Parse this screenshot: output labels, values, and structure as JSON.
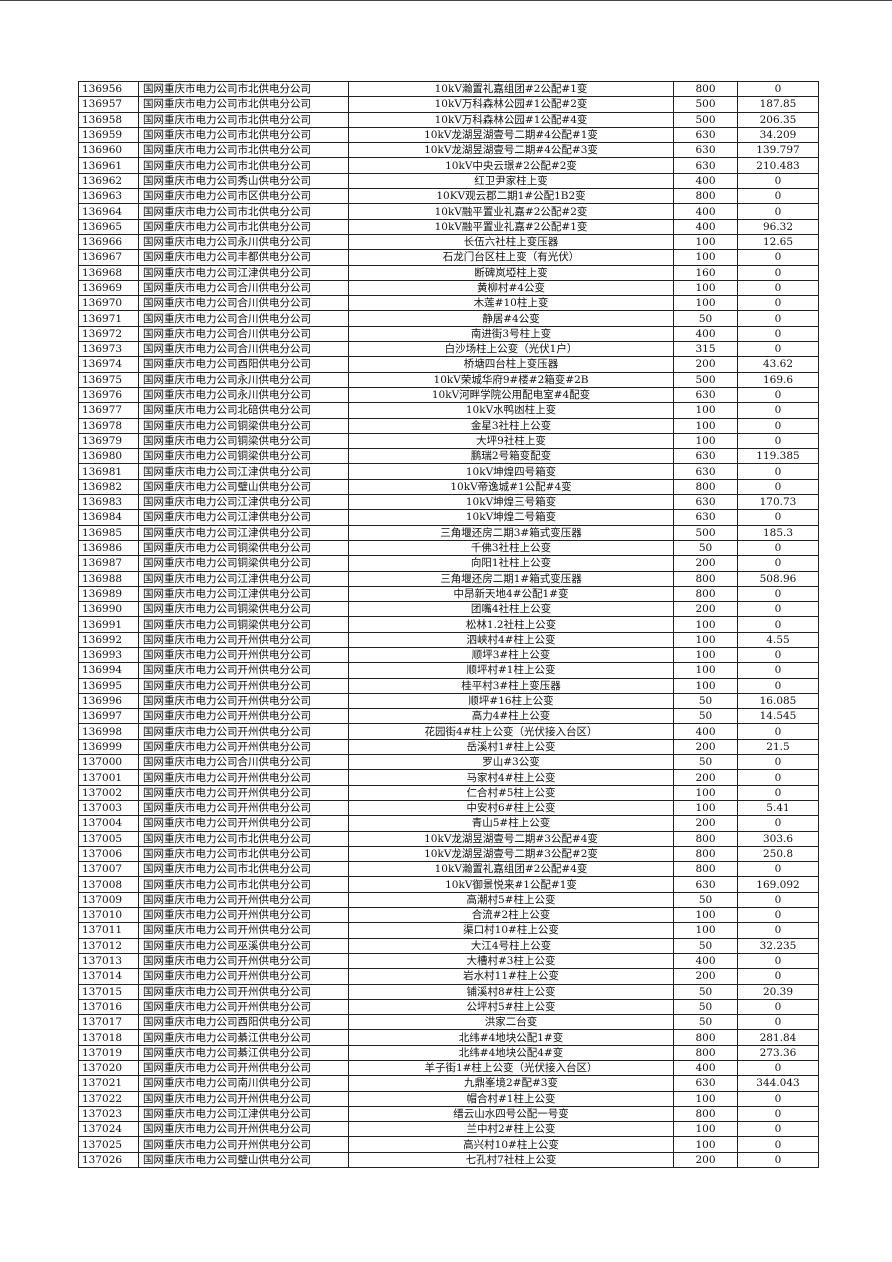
{
  "table": {
    "rows": [
      [
        "136956",
        "国网重庆市电力公司市北供电分公司",
        "10kV瀚置礼嘉组团#2公配#1变",
        "800",
        "0"
      ],
      [
        "136957",
        "国网重庆市电力公司市北供电分公司",
        "10kV万科森林公园#1公配#2变",
        "500",
        "187.85"
      ],
      [
        "136958",
        "国网重庆市电力公司市北供电分公司",
        "10kV万科森林公园#1公配#4变",
        "500",
        "206.35"
      ],
      [
        "136959",
        "国网重庆市电力公司市北供电分公司",
        "10kV龙湖昱湖壹号二期#4公配#1变",
        "630",
        "34.209"
      ],
      [
        "136960",
        "国网重庆市电力公司市北供电分公司",
        "10kV龙湖昱湖壹号二期#4公配#3变",
        "630",
        "139.797"
      ],
      [
        "136961",
        "国网重庆市电力公司市北供电分公司",
        "10kV中央云璟#2公配#2变",
        "630",
        "210.483"
      ],
      [
        "136962",
        "国网重庆市电力公司秀山供电分公司",
        "红卫尹家柱上变",
        "400",
        "0"
      ],
      [
        "136963",
        "国网重庆市电力公司市区供电分公司",
        "10KV观云郡二期1#公配1B2变",
        "800",
        "0"
      ],
      [
        "136964",
        "国网重庆市电力公司市北供电分公司",
        "10kV融平置业礼嘉#2公配#2变",
        "400",
        "0"
      ],
      [
        "136965",
        "国网重庆市电力公司市北供电分公司",
        "10kV融平置业礼嘉#2公配#1变",
        "400",
        "96.32"
      ],
      [
        "136966",
        "国网重庆市电力公司永川供电分公司",
        "长伍六社柱上变压器",
        "100",
        "12.65"
      ],
      [
        "136967",
        "国网重庆市电力公司丰都供电分公司",
        "石龙门台区柱上变（有光伏）",
        "100",
        "0"
      ],
      [
        "136968",
        "国网重庆市电力公司江津供电分公司",
        "断碑岚埡柱上变",
        "160",
        "0"
      ],
      [
        "136969",
        "国网重庆市电力公司合川供电分公司",
        "黄柳村#4公变",
        "100",
        "0"
      ],
      [
        "136970",
        "国网重庆市电力公司合川供电分公司",
        "木莲#10柱上变",
        "100",
        "0"
      ],
      [
        "136971",
        "国网重庆市电力公司合川供电分公司",
        "静居#4公变",
        "50",
        "0"
      ],
      [
        "136972",
        "国网重庆市电力公司合川供电分公司",
        "南进街3号柱上变",
        "400",
        "0"
      ],
      [
        "136973",
        "国网重庆市电力公司合川供电分公司",
        "白沙场柱上公变（光伏1户）",
        "315",
        "0"
      ],
      [
        "136974",
        "国网重庆市电力公司酉阳供电分公司",
        "桥塘四台柱上变压器",
        "200",
        "43.62"
      ],
      [
        "136975",
        "国网重庆市电力公司永川供电分公司",
        "10kV荣城华府9#楼#2箱变#2B",
        "500",
        "169.6"
      ],
      [
        "136976",
        "国网重庆市电力公司永川供电分公司",
        "10kV河畔学院公用配电室#4配变",
        "630",
        "0"
      ],
      [
        "136977",
        "国网重庆市电力公司北碚供电分公司",
        "10kV水鸭凼柱上变",
        "100",
        "0"
      ],
      [
        "136978",
        "国网重庆市电力公司铜梁供电分公司",
        "金星3社柱上公变",
        "100",
        "0"
      ],
      [
        "136979",
        "国网重庆市电力公司铜梁供电分公司",
        "大坪9社柱上变",
        "100",
        "0"
      ],
      [
        "136980",
        "国网重庆市电力公司铜梁供电分公司",
        "鹏瑞2号箱变配变",
        "630",
        "119.385"
      ],
      [
        "136981",
        "国网重庆市电力公司江津供电分公司",
        "10kV坤煌四号箱变",
        "630",
        "0"
      ],
      [
        "136982",
        "国网重庆市电力公司璧山供电分公司",
        "10kV帝逸城#1公配#4变",
        "800",
        "0"
      ],
      [
        "136983",
        "国网重庆市电力公司江津供电分公司",
        "10kV坤煌三号箱变",
        "630",
        "170.73"
      ],
      [
        "136984",
        "国网重庆市电力公司江津供电分公司",
        "10kV坤煌二号箱变",
        "630",
        "0"
      ],
      [
        "136985",
        "国网重庆市电力公司江津供电分公司",
        "三角堰还房二期3#箱式变压器",
        "500",
        "185.3"
      ],
      [
        "136986",
        "国网重庆市电力公司铜梁供电分公司",
        "千佛3社柱上公变",
        "50",
        "0"
      ],
      [
        "136987",
        "国网重庆市电力公司铜梁供电分公司",
        "向阳1社柱上公变",
        "200",
        "0"
      ],
      [
        "136988",
        "国网重庆市电力公司江津供电分公司",
        "三角堰还房二期1#箱式变压器",
        "800",
        "508.96"
      ],
      [
        "136989",
        "国网重庆市电力公司江津供电分公司",
        "中昂新天地4#公配1#变",
        "800",
        "0"
      ],
      [
        "136990",
        "国网重庆市电力公司铜梁供电分公司",
        "团嘴4社柱上公变",
        "200",
        "0"
      ],
      [
        "136991",
        "国网重庆市电力公司铜梁供电分公司",
        "松林1.2社柱上公变",
        "100",
        "0"
      ],
      [
        "136992",
        "国网重庆市电力公司开州供电分公司",
        "泗峡村4#柱上公变",
        "100",
        "4.55"
      ],
      [
        "136993",
        "国网重庆市电力公司开州供电分公司",
        "顺坪3#柱上公变",
        "100",
        "0"
      ],
      [
        "136994",
        "国网重庆市电力公司开州供电分公司",
        "顺坪村#1柱上公变",
        "100",
        "0"
      ],
      [
        "136995",
        "国网重庆市电力公司开州供电分公司",
        "桂平村3#柱上变压器",
        "100",
        "0"
      ],
      [
        "136996",
        "国网重庆市电力公司开州供电分公司",
        "顺坪#16柱上公变",
        "50",
        "16.085"
      ],
      [
        "136997",
        "国网重庆市电力公司开州供电分公司",
        "高力4#柱上公变",
        "50",
        "14.545"
      ],
      [
        "136998",
        "国网重庆市电力公司开州供电分公司",
        "花园街4#柱上公变（光伏接入台区）",
        "400",
        "0"
      ],
      [
        "136999",
        "国网重庆市电力公司开州供电分公司",
        "岳溪村1#柱上公变",
        "200",
        "21.5"
      ],
      [
        "137000",
        "国网重庆市电力公司合川供电分公司",
        "罗山#3公变",
        "50",
        "0"
      ],
      [
        "137001",
        "国网重庆市电力公司开州供电分公司",
        "马家村4#柱上公变",
        "200",
        "0"
      ],
      [
        "137002",
        "国网重庆市电力公司开州供电分公司",
        "仁合村#5柱上公变",
        "100",
        "0"
      ],
      [
        "137003",
        "国网重庆市电力公司开州供电分公司",
        "中安村6#柱上公变",
        "100",
        "5.41"
      ],
      [
        "137004",
        "国网重庆市电力公司开州供电分公司",
        "青山5#柱上公变",
        "200",
        "0"
      ],
      [
        "137005",
        "国网重庆市电力公司市北供电分公司",
        "10kV龙湖昱湖壹号二期#3公配#4变",
        "800",
        "303.6"
      ],
      [
        "137006",
        "国网重庆市电力公司市北供电分公司",
        "10kV龙湖昱湖壹号二期#3公配#2变",
        "800",
        "250.8"
      ],
      [
        "137007",
        "国网重庆市电力公司市北供电分公司",
        "10kV瀚置礼嘉组团#2公配#4变",
        "800",
        "0"
      ],
      [
        "137008",
        "国网重庆市电力公司市北供电分公司",
        "10kV御景悦来#1公配#1变",
        "630",
        "169.092"
      ],
      [
        "137009",
        "国网重庆市电力公司开州供电分公司",
        "高潮村5#柱上公变",
        "50",
        "0"
      ],
      [
        "137010",
        "国网重庆市电力公司开州供电分公司",
        "合流#2柱上公变",
        "100",
        "0"
      ],
      [
        "137011",
        "国网重庆市电力公司开州供电分公司",
        "渠口村10#柱上公变",
        "100",
        "0"
      ],
      [
        "137012",
        "国网重庆市电力公司巫溪供电分公司",
        "大江4号柱上公变",
        "50",
        "32.235"
      ],
      [
        "137013",
        "国网重庆市电力公司开州供电分公司",
        "大槽村#3柱上公变",
        "400",
        "0"
      ],
      [
        "137014",
        "国网重庆市电力公司开州供电分公司",
        "岩水村11#柱上公变",
        "200",
        "0"
      ],
      [
        "137015",
        "国网重庆市电力公司开州供电分公司",
        "铺溪村8#柱上公变",
        "50",
        "20.39"
      ],
      [
        "137016",
        "国网重庆市电力公司开州供电分公司",
        "公坪村5#柱上公变",
        "50",
        "0"
      ],
      [
        "137017",
        "国网重庆市电力公司酉阳供电分公司",
        "洪家二台变",
        "50",
        "0"
      ],
      [
        "137018",
        "国网重庆市电力公司綦江供电分公司",
        "北纬#4地块公配1#变",
        "800",
        "281.84"
      ],
      [
        "137019",
        "国网重庆市电力公司綦江供电分公司",
        "北纬#4地块公配4#变",
        "800",
        "273.36"
      ],
      [
        "137020",
        "国网重庆市电力公司开州供电分公司",
        "羊子街1#柱上公变（光伏接入台区）",
        "400",
        "0"
      ],
      [
        "137021",
        "国网重庆市电力公司南川供电分公司",
        "九鼎峯境2#配#3变",
        "630",
        "344.043"
      ],
      [
        "137022",
        "国网重庆市电力公司开州供电分公司",
        "帽合村#1柱上公变",
        "100",
        "0"
      ],
      [
        "137023",
        "国网重庆市电力公司江津供电分公司",
        "缙云山水四号公配一号变",
        "800",
        "0"
      ],
      [
        "137024",
        "国网重庆市电力公司开州供电分公司",
        "兰中村2#柱上公变",
        "100",
        "0"
      ],
      [
        "137025",
        "国网重庆市电力公司开州供电分公司",
        "高兴村10#柱上公变",
        "100",
        "0"
      ],
      [
        "137026",
        "国网重庆市电力公司璧山供电分公司",
        "七孔村7社柱上公变",
        "200",
        "0"
      ]
    ]
  }
}
